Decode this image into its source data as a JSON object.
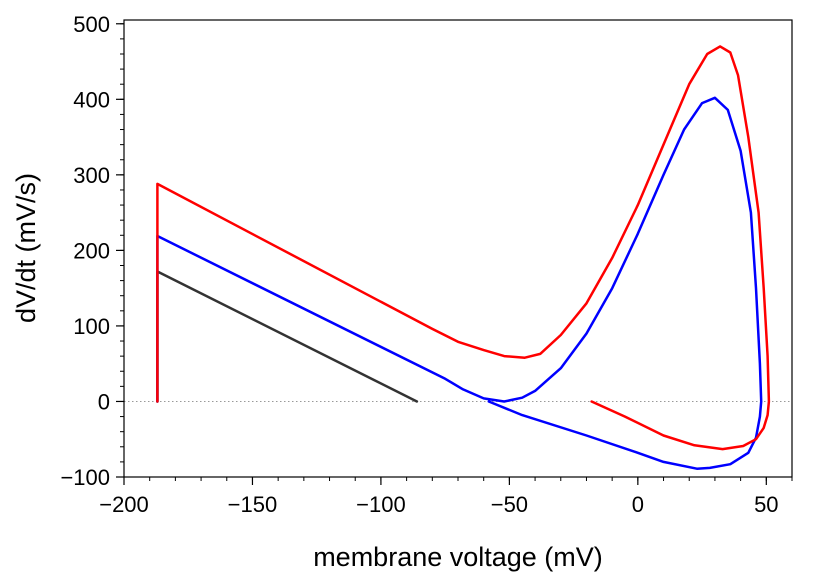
{
  "chart_data": {
    "type": "line",
    "title": "",
    "xlabel": "membrane voltage (mV)",
    "ylabel": "dV/dt (mV/s)",
    "xlim": [
      -200,
      60
    ],
    "ylim": [
      -100,
      505
    ],
    "xticks": [
      -200,
      -150,
      -100,
      -50,
      0,
      50
    ],
    "xtick_labels": [
      "−200",
      "−150",
      "−100",
      "−50",
      "0",
      "50"
    ],
    "yticks": [
      -100,
      0,
      100,
      200,
      300,
      400,
      500
    ],
    "ytick_labels": [
      "−100",
      "0",
      "100",
      "200",
      "300",
      "400",
      "500"
    ],
    "x_minor_step": 10,
    "y_minor_step": 20,
    "grid": false,
    "reference_line": {
      "y": 0,
      "style": "dotted",
      "color": "#999999"
    },
    "series": [
      {
        "color": "#333333",
        "points": [
          [
            -187,
            0
          ],
          [
            -187,
            172
          ],
          [
            -86,
            0
          ]
        ]
      },
      {
        "color": "#0000ff",
        "points": [
          [
            -187,
            0
          ],
          [
            -187,
            219
          ],
          [
            -75,
            30
          ],
          [
            -68,
            16
          ],
          [
            -60,
            4
          ],
          [
            -52,
            0
          ],
          [
            -45,
            5
          ],
          [
            -40,
            14
          ],
          [
            -30,
            44
          ],
          [
            -20,
            90
          ],
          [
            -10,
            150
          ],
          [
            0,
            222
          ],
          [
            10,
            300
          ],
          [
            18,
            360
          ],
          [
            25,
            395
          ],
          [
            30,
            402
          ],
          [
            35,
            386
          ],
          [
            40,
            332
          ],
          [
            44,
            250
          ],
          [
            46,
            150
          ],
          [
            47.5,
            50
          ],
          [
            48,
            0
          ],
          [
            47.5,
            -20
          ],
          [
            46,
            -48
          ],
          [
            43,
            -68
          ],
          [
            36,
            -83
          ],
          [
            28,
            -88
          ],
          [
            23,
            -89
          ],
          [
            10,
            -80
          ],
          [
            0,
            -68
          ],
          [
            -20,
            -45
          ],
          [
            -45,
            -18
          ],
          [
            -58,
            0
          ]
        ]
      },
      {
        "color": "#ff0000",
        "points": [
          [
            -187,
            0
          ],
          [
            -187,
            288
          ],
          [
            -80,
            96
          ],
          [
            -70,
            79
          ],
          [
            -60,
            68
          ],
          [
            -52,
            60
          ],
          [
            -44,
            58
          ],
          [
            -38,
            63
          ],
          [
            -30,
            88
          ],
          [
            -20,
            130
          ],
          [
            -10,
            190
          ],
          [
            0,
            260
          ],
          [
            10,
            340
          ],
          [
            20,
            420
          ],
          [
            27,
            460
          ],
          [
            32,
            470
          ],
          [
            36,
            462
          ],
          [
            39,
            432
          ],
          [
            43,
            350
          ],
          [
            47,
            250
          ],
          [
            49,
            150
          ],
          [
            50.5,
            60
          ],
          [
            51,
            0
          ],
          [
            50.5,
            -18
          ],
          [
            49,
            -35
          ],
          [
            46,
            -50
          ],
          [
            41,
            -59
          ],
          [
            33,
            -63
          ],
          [
            22,
            -58
          ],
          [
            10,
            -45
          ],
          [
            -5,
            -20
          ],
          [
            -18,
            0
          ]
        ]
      }
    ]
  }
}
